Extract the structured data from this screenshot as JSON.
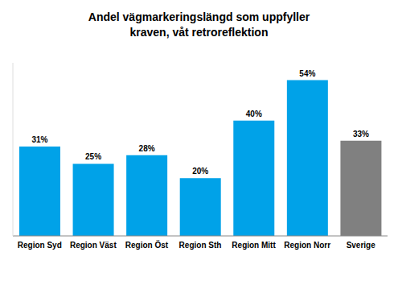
{
  "chart_data": {
    "type": "bar",
    "title": "Andel vägmarkeringslängd som uppfyller kraven, våt retroreflektion",
    "categories": [
      "Region Syd",
      "Region Väst",
      "Region Öst",
      "Region Sth",
      "Region Mitt",
      "Region Norr",
      "Sverige"
    ],
    "values": [
      31,
      25,
      28,
      20,
      40,
      54,
      33
    ],
    "value_labels": [
      "31%",
      "25%",
      "28%",
      "20%",
      "40%",
      "54%",
      "33%"
    ],
    "colors": [
      "#00a2e8",
      "#00a2e8",
      "#00a2e8",
      "#00a2e8",
      "#00a2e8",
      "#00a2e8",
      "#808080"
    ],
    "ylim": [
      0,
      60
    ],
    "data_labels": true,
    "tick_labels": "x",
    "grid": false
  }
}
